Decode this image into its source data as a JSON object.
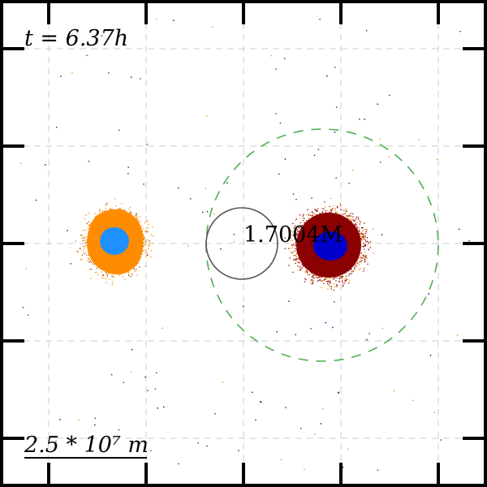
{
  "time_label": "t = 6.37h",
  "mass_label": "1.7004M",
  "scale_label": "2.5 * 10⁷ m",
  "colors": {
    "frame": "#000000",
    "grid": "#cccccc",
    "left_body_outer": "#ff8c00",
    "left_body_core": "#1e90ff",
    "right_body_outer": "#8b0000",
    "right_body_core": "#0000cd",
    "gray_circle": "#555555",
    "dashed_circle": "#4caf50"
  }
}
